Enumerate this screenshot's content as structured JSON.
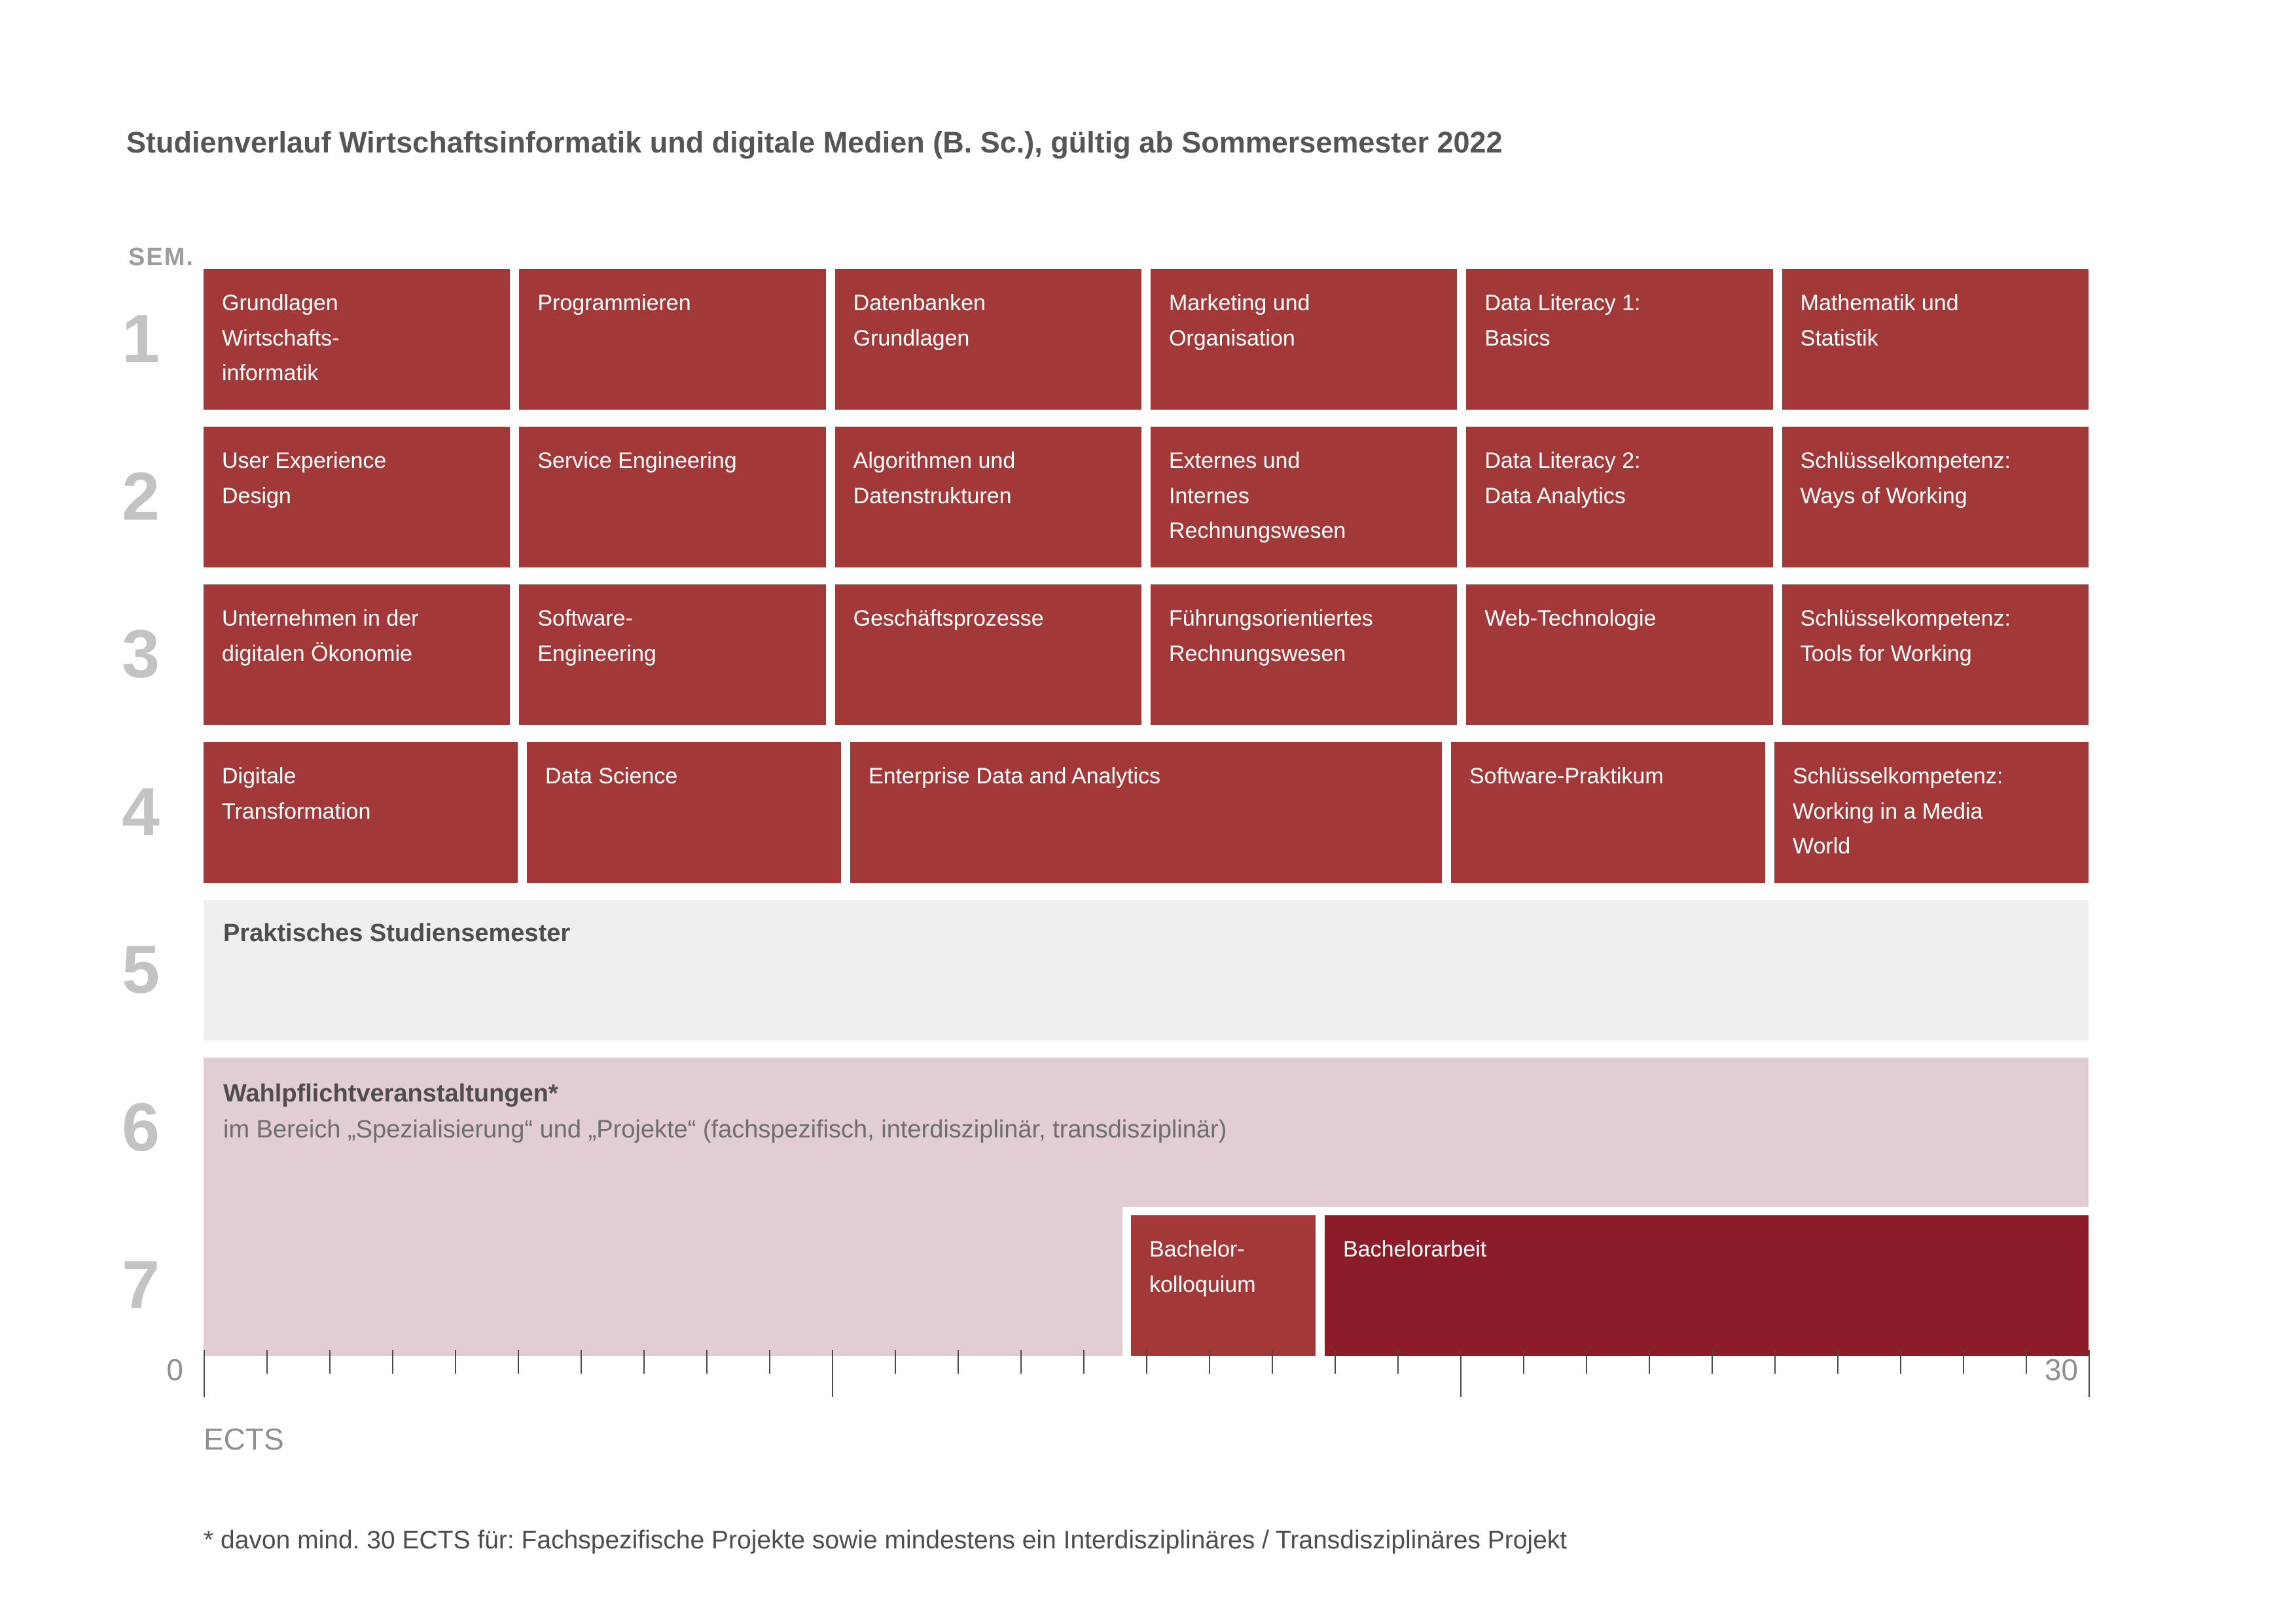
{
  "title": "Studienverlauf Wirtschaftsinformatik und digitale Medien (B. Sc.), gültig ab Sommersemester 2022",
  "axis": {
    "sem_label": "SEM.",
    "ects_label": "ECTS",
    "start_label": "0",
    "end_label": "30",
    "start": 0,
    "end": 30,
    "tick_step": 1,
    "major_tick_step": 10
  },
  "colors": {
    "course_box": "#A23837",
    "thesis_box": "#8C1C28",
    "electives_box": "#E3CDD4",
    "internship_box": "#EFEFEF",
    "box_text": "#FFFFFF",
    "dark_text": "#4D4D4D",
    "muted_text": "#909090",
    "semester_number": "#C3C3C3"
  },
  "semesters": [
    {
      "number": "1",
      "courses": [
        {
          "label": "Grundlagen\nWirtschafts-\ninformatik",
          "ects": 5
        },
        {
          "label": "Programmieren",
          "ects": 5
        },
        {
          "label": "Datenbanken\nGrundlagen",
          "ects": 5
        },
        {
          "label": "Marketing und\nOrganisation",
          "ects": 5
        },
        {
          "label": "Data Literacy 1:\nBasics",
          "ects": 5
        },
        {
          "label": "Mathematik und\nStatistik",
          "ects": 5
        }
      ]
    },
    {
      "number": "2",
      "courses": [
        {
          "label": "User Experience\nDesign",
          "ects": 5
        },
        {
          "label": "Service Engineering",
          "ects": 5
        },
        {
          "label": "Algorithmen und\nDatenstrukturen",
          "ects": 5
        },
        {
          "label": "Externes und\nInternes\nRechnungswesen",
          "ects": 5
        },
        {
          "label": "Data Literacy 2:\nData Analytics",
          "ects": 5
        },
        {
          "label": "Schlüsselkompetenz:\nWays of Working",
          "ects": 5
        }
      ]
    },
    {
      "number": "3",
      "courses": [
        {
          "label": "Unternehmen in der\ndigitalen Ökonomie",
          "ects": 5
        },
        {
          "label": "Software-\nEngineering",
          "ects": 5
        },
        {
          "label": "Geschäftsprozesse",
          "ects": 5
        },
        {
          "label": "Führungsorientiertes\nRechnungswesen",
          "ects": 5
        },
        {
          "label": "Web-Technologie",
          "ects": 5
        },
        {
          "label": "Schlüsselkompetenz:\nTools for Working",
          "ects": 5
        }
      ]
    },
    {
      "number": "4",
      "courses": [
        {
          "label": "Digitale\nTransformation",
          "ects": 5
        },
        {
          "label": "Data Science",
          "ects": 5
        },
        {
          "label": "Enterprise Data and Analytics",
          "ects": 10
        },
        {
          "label": "Software-Praktikum",
          "ects": 5
        },
        {
          "label": "Schlüsselkompetenz:\nWorking in a Media\nWorld",
          "ects": 5
        }
      ]
    },
    {
      "number": "5",
      "internship": {
        "label": "Praktisches Studiensemester",
        "ects": 30
      }
    },
    {
      "number": "6",
      "electives": {
        "title": "Wahlpflichtveranstaltungen*",
        "subtitle": "im Bereich „Spezialisierung“ und „Projekte“ (fachspezifisch, interdisziplinär, transdisziplinär)",
        "spans_semesters": "6–7"
      }
    },
    {
      "number": "7",
      "courses": [
        {
          "label": "Bachelor-\nkolloquium",
          "ects": 3
        },
        {
          "label": "Bachelorarbeit",
          "ects": 12
        }
      ]
    }
  ],
  "footnote": "* davon mind. 30 ECTS für: Fachspezifische Projekte sowie mindestens ein Interdisziplinäres / Transdisziplinäres Projekt"
}
